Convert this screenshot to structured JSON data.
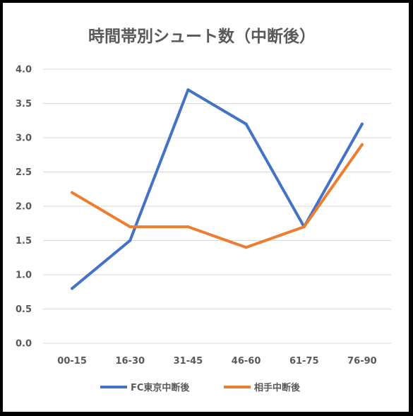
{
  "chart_data": {
    "type": "line",
    "title": "時間帯別シュート数（中断後）",
    "categories": [
      "00-15",
      "16-30",
      "31-45",
      "46-60",
      "61-75",
      "76-90"
    ],
    "series": [
      {
        "name": "FC東京中断後",
        "values": [
          0.8,
          1.5,
          3.7,
          3.2,
          1.7,
          3.2
        ],
        "color": "#4472C4"
      },
      {
        "name": "相手中断後",
        "values": [
          2.2,
          1.7,
          1.7,
          1.4,
          1.7,
          2.9
        ],
        "color": "#ED7D31"
      }
    ],
    "ylim": [
      0,
      4.0
    ],
    "yticks": [
      "0.0",
      "0.5",
      "1.0",
      "1.5",
      "2.0",
      "2.5",
      "3.0",
      "3.5",
      "4.0"
    ],
    "grid": true,
    "legend": "bottom"
  }
}
